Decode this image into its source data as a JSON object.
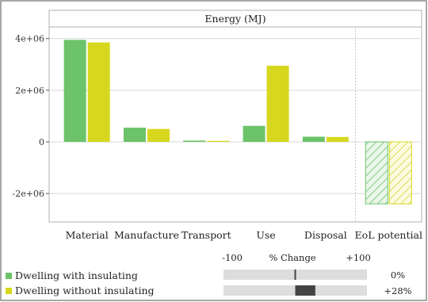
{
  "chart_data": {
    "type": "bar",
    "title": "Energy (MJ)",
    "categories": [
      "Material",
      "Manufacture",
      "Transport",
      "Use",
      "Disposal",
      "EoL potential"
    ],
    "series": [
      {
        "name": "Dwelling with insulating",
        "color": "#6cc36a",
        "values": [
          3950000,
          550000,
          50000,
          620000,
          200000,
          -2400000
        ]
      },
      {
        "name": "Dwelling without insulating",
        "color": "#d7d71f",
        "values": [
          3850000,
          500000,
          40000,
          2950000,
          190000,
          -2400000
        ]
      }
    ],
    "hatched_categories": [
      "EoL potential"
    ],
    "yticks": [
      -2000000,
      0,
      2000000,
      4000000
    ],
    "ytick_labels": [
      "-2e+06",
      "0",
      "2e+06",
      "4e+06"
    ],
    "ylim": [
      -3100000,
      4450000
    ],
    "xlabel": "",
    "ylabel": ""
  },
  "change_scale": {
    "label": "% Change",
    "min_label": "-100",
    "max_label": "+100",
    "rows": [
      {
        "series": "Dwelling with insulating",
        "percent": 0,
        "label": "0%"
      },
      {
        "series": "Dwelling without insulating",
        "percent": 28,
        "label": "+28%"
      }
    ]
  }
}
